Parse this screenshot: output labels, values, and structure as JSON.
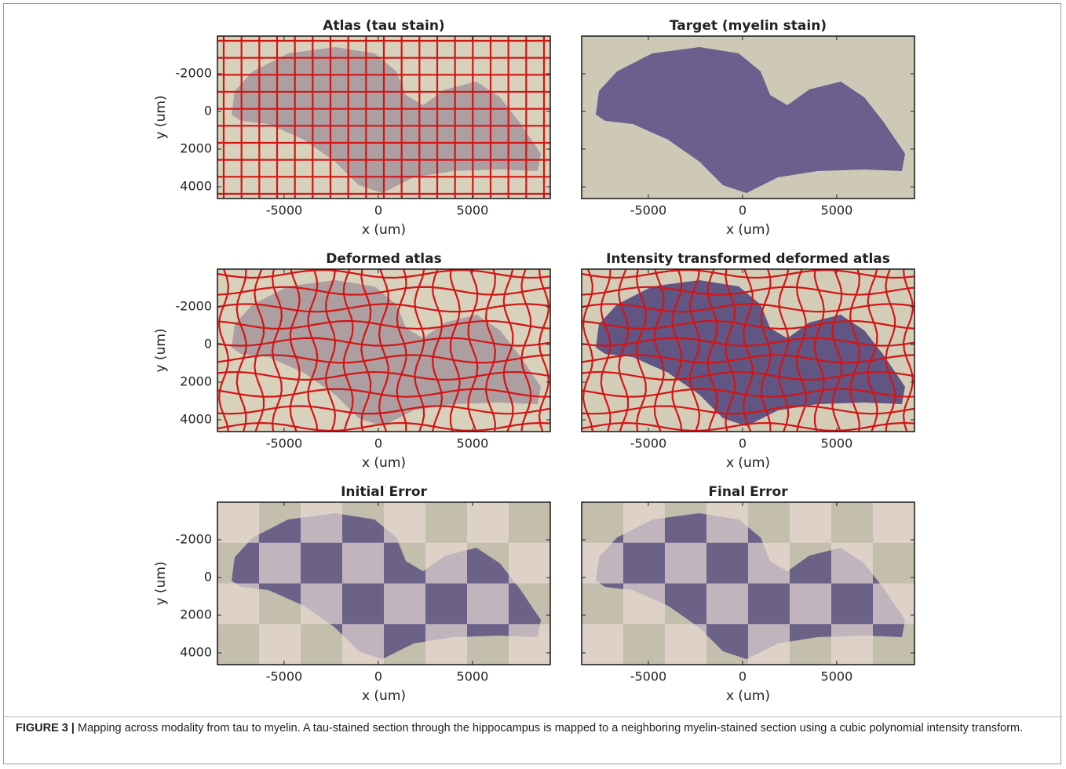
{
  "chart_data": [
    {
      "type": "image",
      "title": "Atlas (tau stain)",
      "xlabel": "x (um)",
      "ylabel": "y (um)",
      "xlim": [
        -8540,
        9130
      ],
      "ylim": [
        4625,
        -4000
      ],
      "xticks": [
        -5000,
        0,
        5000
      ],
      "yticks": [
        -2000,
        0,
        2000,
        4000
      ]
    },
    {
      "type": "image",
      "title": "Target (myelin stain)",
      "xlabel": "x (um)",
      "ylabel": "",
      "xlim": [
        -8540,
        9130
      ],
      "ylim": [
        4625,
        -4000
      ],
      "xticks": [
        -5000,
        0,
        5000
      ],
      "yticks": [
        -2000,
        0,
        2000,
        4000
      ]
    },
    {
      "type": "image",
      "title": "Deformed atlas",
      "xlabel": "x (um)",
      "ylabel": "y (um)",
      "xlim": [
        -8540,
        9130
      ],
      "ylim": [
        4625,
        -4000
      ],
      "xticks": [
        -5000,
        0,
        5000
      ],
      "yticks": [
        -2000,
        0,
        2000,
        4000
      ]
    },
    {
      "type": "image",
      "title": "Intensity transformed deformed atlas",
      "xlabel": "x (um)",
      "ylabel": "",
      "xlim": [
        -8540,
        9130
      ],
      "ylim": [
        4625,
        -4000
      ],
      "xticks": [
        -5000,
        0,
        5000
      ],
      "yticks": [
        -2000,
        0,
        2000,
        4000
      ]
    },
    {
      "type": "image",
      "title": "Initial Error",
      "xlabel": "x (um)",
      "ylabel": "y (um)",
      "xlim": [
        -8540,
        9130
      ],
      "ylim": [
        4625,
        -4000
      ],
      "xticks": [
        -5000,
        0,
        5000
      ],
      "yticks": [
        -2000,
        0,
        2000,
        4000
      ]
    },
    {
      "type": "image",
      "title": "Final Error",
      "xlabel": "x (um)",
      "ylabel": "",
      "xlim": [
        -8540,
        9130
      ],
      "ylim": [
        4625,
        -4000
      ],
      "xticks": [
        -5000,
        0,
        5000
      ],
      "yticks": [
        -2000,
        0,
        2000,
        4000
      ]
    }
  ],
  "caption": {
    "label": "FIGURE 3 |",
    "text": "Mapping across modality from tau to myelin. A tau-stained section through the hippocampus is mapped to a neighboring myelin-stained section using a cubic polynomial intensity transform."
  }
}
